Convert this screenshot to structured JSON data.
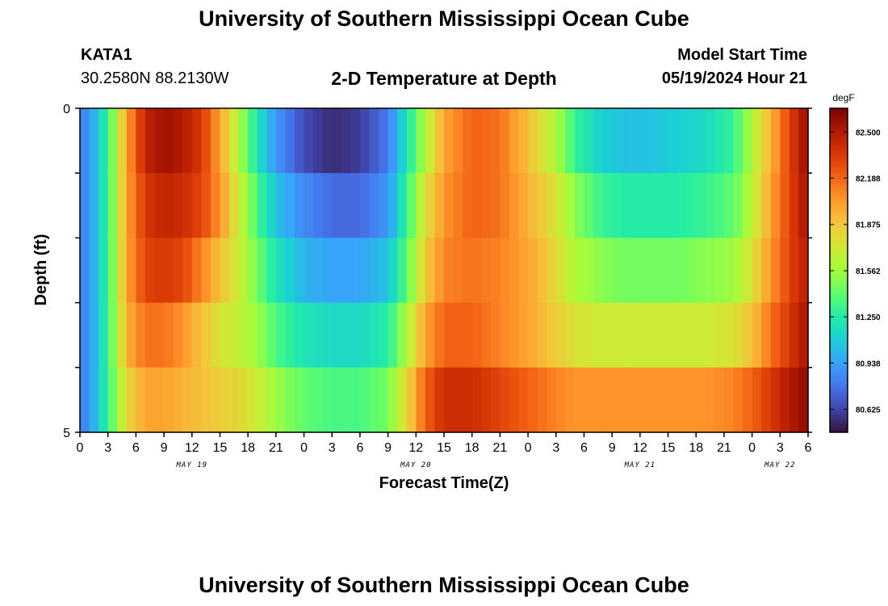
{
  "header": {
    "title": "University of Southern Mississippi Ocean Cube",
    "station": "KATA1",
    "coords": "30.2580N  88.2130W",
    "subtitle": "2-D Temperature at Depth",
    "model_start_label": "Model Start Time",
    "model_start_value": "05/19/2024 Hour 21"
  },
  "footer": {
    "title": "University of Southern Mississippi Ocean Cube"
  },
  "chart_data": {
    "type": "heatmap",
    "xlabel": "Forecast Time(Z)",
    "ylabel": "Depth (ft)",
    "x_tick_labels": [
      "0",
      "3",
      "6",
      "9",
      "12",
      "15",
      "18",
      "21",
      "0",
      "3",
      "6",
      "9",
      "12",
      "15",
      "18",
      "21",
      "0",
      "3",
      "6",
      "9",
      "12",
      "15",
      "18",
      "21",
      "0",
      "3",
      "6"
    ],
    "x_date_labels": [
      {
        "label": "MAY 19",
        "tick_index": 4
      },
      {
        "label": "MAY 20",
        "tick_index": 12
      },
      {
        "label": "MAY 21",
        "tick_index": 20
      },
      {
        "label": "MAY 22",
        "tick_index": 25
      }
    ],
    "y_tick_labels": [
      "0",
      "5"
    ],
    "ylim": [
      0,
      5
    ],
    "xlim_hours": [
      0,
      78
    ],
    "colorbar": {
      "unit": "degF",
      "min": 80.47,
      "max": 82.66,
      "tick_values": [
        80.625,
        80.938,
        81.25,
        81.562,
        81.875,
        82.188,
        82.5
      ],
      "tick_labels": [
        "80.625",
        "80.938",
        "81.250",
        "81.562",
        "81.875",
        "82.188",
        "82.500"
      ],
      "colors": [
        "#30123b",
        "#4145ab",
        "#4675ed",
        "#39a2fc",
        "#1bcfd4",
        "#24eca6",
        "#61fc6c",
        "#a4fc3b",
        "#d1e834",
        "#f3c63a",
        "#fe9b2d",
        "#f36315",
        "#d93806",
        "#b11901",
        "#7a0403"
      ]
    },
    "depth_rows": [
      0,
      1,
      2,
      3,
      4
    ],
    "keyframe_hours": [
      0,
      1,
      3,
      5,
      7,
      9,
      11,
      13,
      15,
      17,
      19,
      21,
      24,
      27,
      30,
      33,
      35,
      37,
      39,
      42,
      45,
      48,
      51,
      53,
      56,
      58,
      61,
      64,
      67,
      70,
      72,
      74,
      76,
      78
    ],
    "temperature_rows": [
      [
        80.8,
        80.9,
        81.3,
        82.0,
        82.45,
        82.55,
        82.5,
        82.35,
        82.0,
        81.6,
        81.2,
        80.9,
        80.65,
        80.55,
        80.6,
        80.8,
        81.2,
        81.6,
        82.0,
        82.2,
        82.15,
        81.9,
        81.6,
        81.3,
        81.1,
        81.05,
        81.05,
        81.1,
        81.15,
        81.3,
        81.6,
        81.95,
        82.3,
        82.6
      ],
      [
        80.8,
        80.9,
        81.3,
        82.0,
        82.35,
        82.45,
        82.4,
        82.3,
        82.05,
        81.7,
        81.35,
        81.05,
        80.85,
        80.75,
        80.75,
        80.9,
        81.3,
        81.75,
        82.05,
        82.2,
        82.15,
        81.95,
        81.75,
        81.5,
        81.3,
        81.25,
        81.25,
        81.25,
        81.3,
        81.4,
        81.65,
        82.0,
        82.3,
        82.55
      ],
      [
        80.8,
        80.9,
        81.3,
        82.0,
        82.3,
        82.35,
        82.3,
        82.1,
        81.9,
        81.7,
        81.45,
        81.2,
        81.0,
        80.95,
        80.95,
        81.05,
        81.4,
        81.85,
        82.1,
        82.15,
        82.1,
        82.0,
        81.8,
        81.6,
        81.5,
        81.45,
        81.45,
        81.45,
        81.5,
        81.55,
        81.75,
        82.05,
        82.3,
        82.5
      ],
      [
        80.8,
        80.9,
        81.3,
        81.95,
        82.15,
        82.15,
        82.05,
        81.9,
        81.75,
        81.65,
        81.55,
        81.35,
        81.2,
        81.15,
        81.15,
        81.25,
        81.6,
        82.0,
        82.2,
        82.2,
        82.1,
        82.0,
        81.85,
        81.75,
        81.7,
        81.7,
        81.7,
        81.7,
        81.7,
        81.75,
        81.9,
        82.15,
        82.35,
        82.55
      ],
      [
        80.8,
        80.9,
        81.3,
        81.8,
        82.0,
        82.0,
        81.95,
        81.9,
        81.85,
        81.8,
        81.7,
        81.55,
        81.4,
        81.35,
        81.35,
        81.45,
        81.8,
        82.2,
        82.4,
        82.4,
        82.3,
        82.2,
        82.1,
        82.05,
        82.05,
        82.05,
        82.05,
        82.05,
        82.05,
        82.1,
        82.2,
        82.35,
        82.5,
        82.6
      ]
    ]
  }
}
